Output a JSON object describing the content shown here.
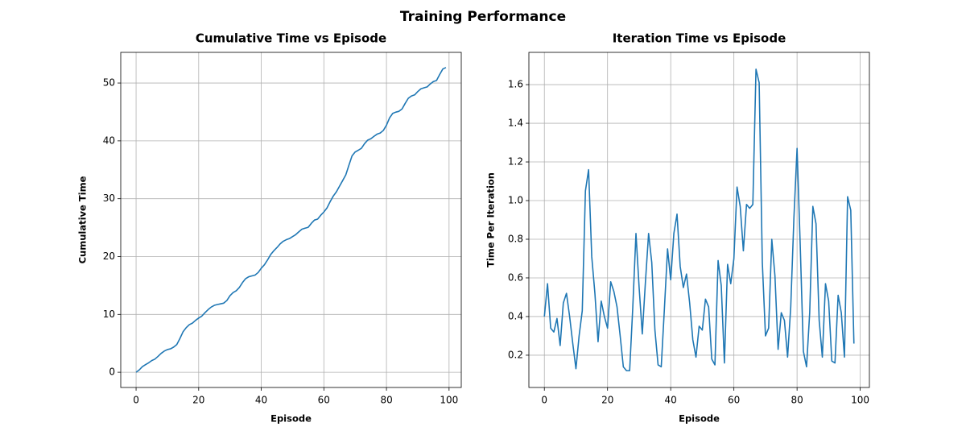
{
  "title": "Training Performance",
  "chart_data": [
    {
      "type": "line",
      "title": "Cumulative Time vs Episode",
      "xlabel": "Episode",
      "ylabel": "Cumulative Time",
      "x": [
        0,
        1,
        2,
        3,
        4,
        5,
        6,
        7,
        8,
        9,
        10,
        11,
        12,
        13,
        14,
        15,
        16,
        17,
        18,
        19,
        20,
        21,
        22,
        23,
        24,
        25,
        26,
        27,
        28,
        29,
        30,
        31,
        32,
        33,
        34,
        35,
        36,
        37,
        38,
        39,
        40,
        41,
        42,
        43,
        44,
        45,
        46,
        47,
        48,
        49,
        50,
        51,
        52,
        53,
        54,
        55,
        56,
        57,
        58,
        59,
        60,
        61,
        62,
        63,
        64,
        65,
        66,
        67,
        68,
        69,
        70,
        71,
        72,
        73,
        74,
        75,
        76,
        77,
        78,
        79,
        80,
        81,
        82,
        83,
        84,
        85,
        86,
        87,
        88,
        89,
        90,
        91,
        92,
        93,
        94,
        95,
        96,
        97,
        98,
        99
      ],
      "values": [
        0,
        0.4,
        0.97,
        1.31,
        1.63,
        2.02,
        2.27,
        2.74,
        3.26,
        3.66,
        3.92,
        4.05,
        4.35,
        4.78,
        5.83,
        6.99,
        7.7,
        8.22,
        8.49,
        8.97,
        9.37,
        9.71,
        10.29,
        10.82,
        11.27,
        11.57,
        11.71,
        11.83,
        11.95,
        12.4,
        13.23,
        13.78,
        14.09,
        14.67,
        15.5,
        16.18,
        16.51,
        16.66,
        16.8,
        17.24,
        17.99,
        18.58,
        19.41,
        20.34,
        21.0,
        21.55,
        22.17,
        22.64,
        22.92,
        23.11,
        23.46,
        23.79,
        24.28,
        24.73,
        24.91,
        25.06,
        25.75,
        26.31,
        26.47,
        27.14,
        27.71,
        28.41,
        29.48,
        30.45,
        31.19,
        32.17,
        33.13,
        34.11,
        35.79,
        37.4,
        38.08,
        38.38,
        38.72,
        39.52,
        40.13,
        40.36,
        40.78,
        41.16,
        41.35,
        41.8,
        42.71,
        43.98,
        44.75,
        44.97,
        45.11,
        45.53,
        46.5,
        47.38,
        47.76,
        47.95,
        48.52,
        49.0,
        49.17,
        49.33,
        49.84,
        50.26,
        50.45,
        51.47,
        52.42,
        52.68
      ],
      "color": "#1f77b4",
      "xlim": [
        -4.9,
        103.9
      ],
      "ylim": [
        -2.63,
        55.3
      ],
      "xticks": [
        0,
        20,
        40,
        60,
        80,
        100
      ],
      "yticks": [
        0,
        10,
        20,
        30,
        40,
        50
      ],
      "grid": true
    },
    {
      "type": "line",
      "title": "Iteration Time vs Episode",
      "xlabel": "Episode",
      "ylabel": "Time Per Iteration",
      "x": [
        0,
        1,
        2,
        3,
        4,
        5,
        6,
        7,
        8,
        9,
        10,
        11,
        12,
        13,
        14,
        15,
        16,
        17,
        18,
        19,
        20,
        21,
        22,
        23,
        24,
        25,
        26,
        27,
        28,
        29,
        30,
        31,
        32,
        33,
        34,
        35,
        36,
        37,
        38,
        39,
        40,
        41,
        42,
        43,
        44,
        45,
        46,
        47,
        48,
        49,
        50,
        51,
        52,
        53,
        54,
        55,
        56,
        57,
        58,
        59,
        60,
        61,
        62,
        63,
        64,
        65,
        66,
        67,
        68,
        69,
        70,
        71,
        72,
        73,
        74,
        75,
        76,
        77,
        78,
        79,
        80,
        81,
        82,
        83,
        84,
        85,
        86,
        87,
        88,
        89,
        90,
        91,
        92,
        93,
        94,
        95,
        96,
        97,
        98
      ],
      "values": [
        0.4,
        0.57,
        0.34,
        0.32,
        0.39,
        0.25,
        0.47,
        0.52,
        0.4,
        0.26,
        0.13,
        0.3,
        0.43,
        1.05,
        1.16,
        0.71,
        0.52,
        0.27,
        0.48,
        0.4,
        0.34,
        0.58,
        0.53,
        0.45,
        0.3,
        0.14,
        0.12,
        0.12,
        0.45,
        0.83,
        0.55,
        0.31,
        0.58,
        0.83,
        0.68,
        0.33,
        0.15,
        0.14,
        0.44,
        0.75,
        0.59,
        0.83,
        0.93,
        0.66,
        0.55,
        0.62,
        0.47,
        0.28,
        0.19,
        0.35,
        0.33,
        0.49,
        0.45,
        0.18,
        0.15,
        0.69,
        0.56,
        0.16,
        0.67,
        0.57,
        0.7,
        1.07,
        0.97,
        0.74,
        0.98,
        0.96,
        0.98,
        1.68,
        1.61,
        0.68,
        0.3,
        0.34,
        0.8,
        0.61,
        0.23,
        0.42,
        0.38,
        0.19,
        0.45,
        0.91,
        1.27,
        0.77,
        0.22,
        0.14,
        0.42,
        0.97,
        0.88,
        0.38,
        0.19,
        0.57,
        0.48,
        0.17,
        0.16,
        0.51,
        0.42,
        0.19,
        1.02,
        0.95,
        0.26
      ],
      "color": "#1f77b4",
      "xlim": [
        -4.9,
        102.9
      ],
      "ylim": [
        0.033,
        1.767
      ],
      "xticks": [
        0,
        20,
        40,
        60,
        80,
        100
      ],
      "yticks": [
        0.2,
        0.4,
        0.6,
        0.8,
        {
          "value": 1,
          "label": "1.0"
        },
        1.2,
        1.4,
        1.6
      ],
      "grid": true
    }
  ]
}
